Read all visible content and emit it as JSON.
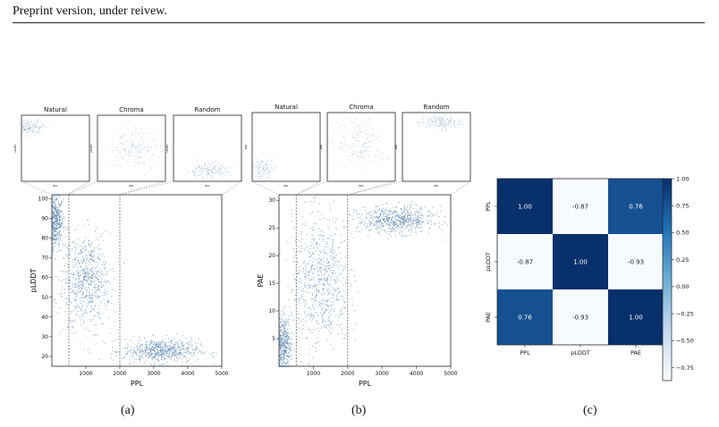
{
  "header": {
    "text": "Preprint version, under reivew."
  },
  "captions": {
    "a": "(a)",
    "b": "(b)",
    "c": "(c)"
  },
  "colors": {
    "point": "#4a78a6",
    "heat_dark": "#08306b",
    "heat_mid": "#2171b5",
    "heat_light": "#f7fbff"
  },
  "chart_data": [
    {
      "id": "a-main",
      "type": "scatter",
      "xlabel": "PPL",
      "ylabel": "pLDDT",
      "xlim": [
        0,
        5000
      ],
      "ylim": [
        15,
        102
      ],
      "xticks": [
        1000,
        2000,
        3000,
        4000,
        5000
      ],
      "yticks": [
        20,
        30,
        40,
        50,
        60,
        70,
        80,
        90,
        100
      ],
      "vlines": [
        500,
        2000
      ],
      "clusters": [
        {
          "name": "Natural",
          "cx": 120,
          "cy": 88,
          "sx": 100,
          "sy": 7,
          "n": 420
        },
        {
          "name": "Chroma",
          "cx": 1000,
          "cy": 58,
          "sx": 350,
          "sy": 12,
          "n": 700
        },
        {
          "name": "Random",
          "cx": 3200,
          "cy": 23,
          "sx": 550,
          "sy": 3,
          "n": 650
        }
      ]
    },
    {
      "id": "b-main",
      "type": "scatter",
      "xlabel": "PPL",
      "ylabel": "PAE",
      "xlim": [
        0,
        5000
      ],
      "ylim": [
        0,
        31
      ],
      "xticks": [
        1000,
        2000,
        3000,
        4000,
        5000
      ],
      "yticks": [
        5,
        10,
        15,
        20,
        25,
        30
      ],
      "vlines": [
        500,
        2000
      ],
      "clusters": [
        {
          "name": "Natural",
          "cx": 130,
          "cy": 4,
          "sx": 110,
          "sy": 2.5,
          "n": 420
        },
        {
          "name": "Chroma",
          "cx": 1200,
          "cy": 15,
          "sx": 420,
          "sy": 6,
          "n": 700
        },
        {
          "name": "Random",
          "cx": 3400,
          "cy": 26.5,
          "sx": 550,
          "sy": 1.2,
          "n": 650
        }
      ]
    },
    {
      "id": "a-natural",
      "type": "scatter",
      "title": "Natural",
      "xlabel": "PPL",
      "ylabel": "pLDDT",
      "xlim": [
        0,
        1
      ],
      "ylim": [
        0,
        1
      ],
      "clusters": [
        {
          "cx": 0.15,
          "cy": 0.82,
          "sx": 0.1,
          "sy": 0.06,
          "n": 180
        }
      ]
    },
    {
      "id": "a-chroma",
      "type": "scatter",
      "title": "Chroma",
      "xlabel": "PPL",
      "ylabel": "pLDDT",
      "xlim": [
        0,
        1
      ],
      "ylim": [
        0,
        1
      ],
      "clusters": [
        {
          "cx": 0.55,
          "cy": 0.5,
          "sx": 0.2,
          "sy": 0.16,
          "n": 220
        }
      ]
    },
    {
      "id": "a-random",
      "type": "scatter",
      "title": "Random",
      "xlabel": "PPL",
      "ylabel": "pLDDT",
      "xlim": [
        0,
        1
      ],
      "ylim": [
        0,
        1
      ],
      "clusters": [
        {
          "cx": 0.5,
          "cy": 0.16,
          "sx": 0.16,
          "sy": 0.06,
          "n": 220
        }
      ]
    },
    {
      "id": "b-natural",
      "type": "scatter",
      "title": "Natural",
      "xlabel": "PPL",
      "ylabel": "PAE",
      "xlim": [
        0,
        1
      ],
      "ylim": [
        0,
        1
      ],
      "clusters": [
        {
          "cx": 0.15,
          "cy": 0.18,
          "sx": 0.1,
          "sy": 0.1,
          "n": 180
        }
      ]
    },
    {
      "id": "b-chroma",
      "type": "scatter",
      "title": "Chroma",
      "xlabel": "PPL",
      "ylabel": "PAE",
      "xlim": [
        0,
        1
      ],
      "ylim": [
        0,
        1
      ],
      "clusters": [
        {
          "cx": 0.5,
          "cy": 0.55,
          "sx": 0.18,
          "sy": 0.2,
          "n": 220
        }
      ]
    },
    {
      "id": "b-random",
      "type": "scatter",
      "title": "Random",
      "xlabel": "PPL",
      "ylabel": "PAE",
      "xlim": [
        0,
        1
      ],
      "ylim": [
        0,
        1
      ],
      "clusters": [
        {
          "cx": 0.55,
          "cy": 0.86,
          "sx": 0.16,
          "sy": 0.05,
          "n": 220
        }
      ]
    },
    {
      "id": "c-heatmap",
      "type": "heatmap",
      "x": [
        "PPL",
        "pLDDT",
        "PAE"
      ],
      "y": [
        "PPL",
        "pLDDT",
        "PAE"
      ],
      "values": [
        [
          1.0,
          -0.87,
          0.76
        ],
        [
          -0.87,
          1.0,
          -0.93
        ],
        [
          0.76,
          -0.93,
          1.0
        ]
      ],
      "labels": [
        [
          "1.00",
          "-0.87",
          "0.76"
        ],
        [
          "-0.87",
          "1.00",
          "-0.93"
        ],
        [
          "0.76",
          "-0.93",
          "1.00"
        ]
      ],
      "colorbar": {
        "range": [
          -0.87,
          1.0
        ],
        "ticks": [
          "1.00",
          "0.75",
          "0.50",
          "0.25",
          "0.00",
          "−0.25",
          "−0.50",
          "−0.75"
        ],
        "tick_values": [
          1.0,
          0.75,
          0.5,
          0.25,
          0.0,
          -0.25,
          -0.5,
          -0.75
        ]
      }
    }
  ]
}
